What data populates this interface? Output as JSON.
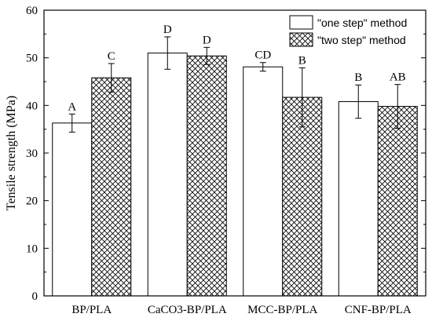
{
  "chart_data": {
    "type": "bar",
    "title": "",
    "xlabel": "",
    "ylabel": "Tensile strength (MPa)",
    "ylim": [
      0,
      60
    ],
    "yticks": [
      0,
      10,
      20,
      30,
      40,
      50,
      60
    ],
    "categories": [
      "BP/PLA",
      "CaCO3-BP/PLA",
      "MCC-BP/PLA",
      "CNF-BP/PLA"
    ],
    "series": [
      {
        "name": "\"one step\" method",
        "fill": "white",
        "values": [
          36.3,
          51.0,
          48.1,
          40.8
        ],
        "errors": [
          1.9,
          3.4,
          0.9,
          3.5
        ],
        "labels": [
          "A",
          "D",
          "CD",
          "B"
        ]
      },
      {
        "name": "\"two step\" method",
        "fill": "crosshatch",
        "values": [
          45.8,
          50.4,
          41.7,
          39.8
        ],
        "errors": [
          3.0,
          1.8,
          6.2,
          4.6
        ],
        "labels": [
          "C",
          "D",
          "B",
          "AB"
        ]
      }
    ],
    "legend_position": "top-right",
    "grid": false
  }
}
